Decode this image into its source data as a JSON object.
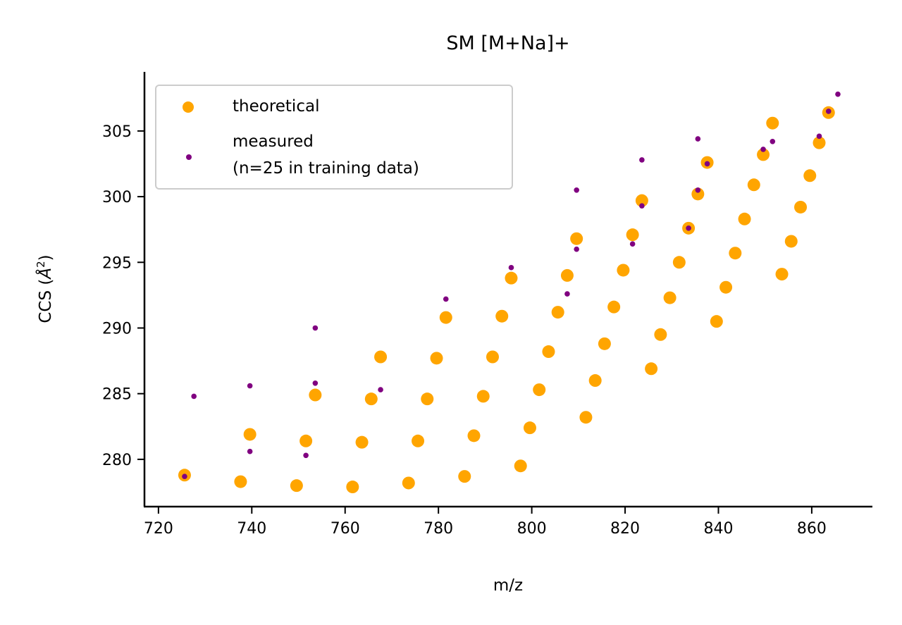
{
  "chart_data": {
    "type": "scatter",
    "title": "SM [M+Na]+",
    "xlabel": "m/z",
    "ylabel": "CCS (Å²)",
    "ylabel_base": "CCS (",
    "ylabel_unit": "Å",
    "ylabel_exp": "2",
    "ylabel_close": ")",
    "xlim": [
      717,
      873
    ],
    "ylim": [
      276.4,
      309.5
    ],
    "x_ticks": [
      720,
      740,
      760,
      780,
      800,
      820,
      840,
      860
    ],
    "y_ticks": [
      280,
      285,
      290,
      295,
      300,
      305
    ],
    "grid": false,
    "legend_position": "top-left",
    "series": [
      {
        "name": "theoretical",
        "color": "#ffa500",
        "marker": "large-circle",
        "points": [
          [
            725.6,
            278.8
          ],
          [
            737.6,
            278.3
          ],
          [
            749.6,
            278.0
          ],
          [
            761.6,
            277.9
          ],
          [
            773.6,
            278.2
          ],
          [
            785.6,
            278.7
          ],
          [
            797.6,
            279.5
          ],
          [
            739.6,
            281.9
          ],
          [
            751.6,
            281.4
          ],
          [
            763.6,
            281.3
          ],
          [
            775.6,
            281.4
          ],
          [
            787.6,
            281.8
          ],
          [
            799.6,
            282.4
          ],
          [
            811.6,
            283.2
          ],
          [
            753.6,
            284.9
          ],
          [
            765.6,
            284.6
          ],
          [
            777.6,
            284.6
          ],
          [
            789.6,
            284.8
          ],
          [
            801.6,
            285.3
          ],
          [
            813.6,
            286.0
          ],
          [
            825.6,
            286.9
          ],
          [
            767.6,
            287.8
          ],
          [
            779.6,
            287.7
          ],
          [
            791.6,
            287.8
          ],
          [
            803.6,
            288.2
          ],
          [
            815.6,
            288.8
          ],
          [
            827.6,
            289.5
          ],
          [
            839.6,
            290.5
          ],
          [
            781.6,
            290.8
          ],
          [
            793.6,
            290.9
          ],
          [
            805.6,
            291.2
          ],
          [
            817.6,
            291.6
          ],
          [
            829.6,
            292.3
          ],
          [
            841.6,
            293.1
          ],
          [
            795.6,
            293.8
          ],
          [
            807.6,
            294.0
          ],
          [
            819.6,
            294.4
          ],
          [
            831.6,
            295.0
          ],
          [
            843.6,
            295.7
          ],
          [
            853.6,
            294.1
          ],
          [
            809.6,
            296.8
          ],
          [
            821.6,
            297.1
          ],
          [
            833.6,
            297.6
          ],
          [
            845.6,
            298.3
          ],
          [
            855.6,
            296.6
          ],
          [
            823.6,
            299.7
          ],
          [
            835.6,
            300.2
          ],
          [
            847.6,
            300.9
          ],
          [
            857.6,
            299.2
          ],
          [
            837.6,
            302.6
          ],
          [
            849.6,
            303.2
          ],
          [
            859.6,
            301.6
          ],
          [
            851.6,
            305.6
          ],
          [
            861.6,
            304.1
          ],
          [
            863.6,
            306.4
          ]
        ]
      },
      {
        "name": "measured\n(n=25 in training data)",
        "name_line1": "measured",
        "name_line2": "(n=25 in training data)",
        "color": "#800080",
        "marker": "small-dot",
        "points": [
          [
            725.6,
            278.7
          ],
          [
            727.6,
            284.8
          ],
          [
            739.6,
            285.6
          ],
          [
            739.6,
            280.6
          ],
          [
            751.6,
            280.3
          ],
          [
            753.6,
            290.0
          ],
          [
            753.6,
            285.8
          ],
          [
            767.6,
            285.3
          ],
          [
            781.6,
            292.2
          ],
          [
            795.6,
            294.6
          ],
          [
            807.6,
            292.6
          ],
          [
            809.6,
            300.5
          ],
          [
            809.6,
            296.0
          ],
          [
            821.6,
            296.4
          ],
          [
            823.6,
            302.8
          ],
          [
            823.6,
            299.3
          ],
          [
            833.6,
            297.6
          ],
          [
            835.6,
            304.4
          ],
          [
            835.6,
            300.5
          ],
          [
            837.6,
            302.5
          ],
          [
            849.6,
            303.6
          ],
          [
            851.6,
            304.2
          ],
          [
            861.6,
            304.6
          ],
          [
            863.6,
            306.5
          ],
          [
            865.6,
            307.8
          ]
        ]
      }
    ]
  }
}
